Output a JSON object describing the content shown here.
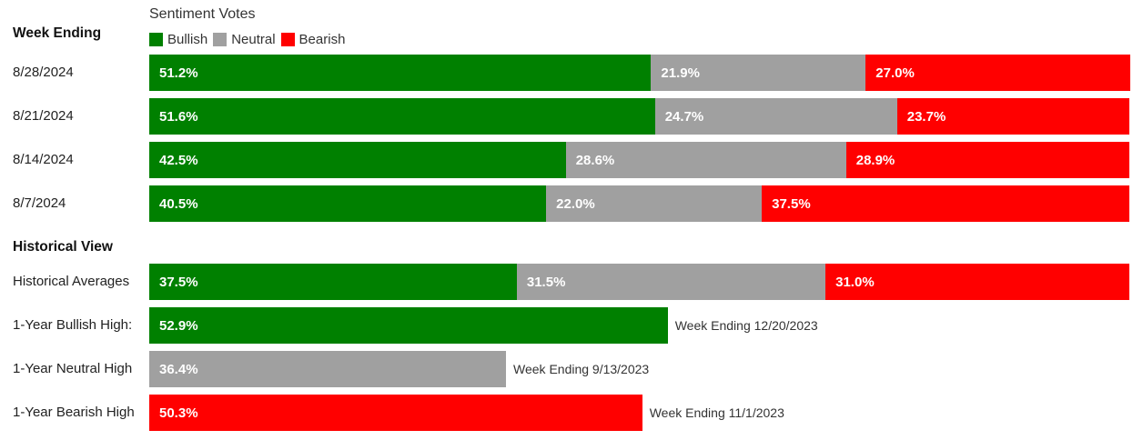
{
  "chart_data": {
    "type": "bar",
    "orientation": "horizontal",
    "stacked": true,
    "title": "Sentiment Votes",
    "section_weekly_label": "Week Ending",
    "section_historical_label": "Historical View",
    "legend": [
      {
        "name": "Bullish",
        "color": "#008000"
      },
      {
        "name": "Neutral",
        "color": "#a0a0a0"
      },
      {
        "name": "Bearish",
        "color": "#ff0000"
      }
    ],
    "weekly": [
      {
        "label": "8/28/2024",
        "values": [
          51.2,
          21.9,
          27.0
        ],
        "texts": [
          "51.2%",
          "21.9%",
          "27.0%"
        ]
      },
      {
        "label": "8/21/2024",
        "values": [
          51.6,
          24.7,
          23.7
        ],
        "texts": [
          "51.6%",
          "24.7%",
          "23.7%"
        ]
      },
      {
        "label": "8/14/2024",
        "values": [
          42.5,
          28.6,
          28.9
        ],
        "texts": [
          "42.5%",
          "28.6%",
          "28.9%"
        ]
      },
      {
        "label": "8/7/2024",
        "values": [
          40.5,
          22.0,
          37.5
        ],
        "texts": [
          "40.5%",
          "22.0%",
          "37.5%"
        ]
      }
    ],
    "historical": [
      {
        "label": "Historical Averages",
        "values": [
          37.5,
          31.5,
          31.0
        ],
        "texts": [
          "37.5%",
          "31.5%",
          "31.0%"
        ],
        "note": ""
      },
      {
        "label": "1-Year Bullish High:",
        "values": [
          52.9
        ],
        "series": [
          0
        ],
        "texts": [
          "52.9%"
        ],
        "note": "Week Ending 12/20/2023"
      },
      {
        "label": "1-Year Neutral High",
        "values": [
          36.4
        ],
        "series": [
          1
        ],
        "texts": [
          "36.4%"
        ],
        "note": "Week Ending 9/13/2023"
      },
      {
        "label": "1-Year Bearish High",
        "values": [
          50.3
        ],
        "series": [
          2
        ],
        "texts": [
          "50.3%"
        ],
        "note": "Week Ending 11/1/2023"
      }
    ],
    "xlim": [
      0,
      100
    ]
  }
}
